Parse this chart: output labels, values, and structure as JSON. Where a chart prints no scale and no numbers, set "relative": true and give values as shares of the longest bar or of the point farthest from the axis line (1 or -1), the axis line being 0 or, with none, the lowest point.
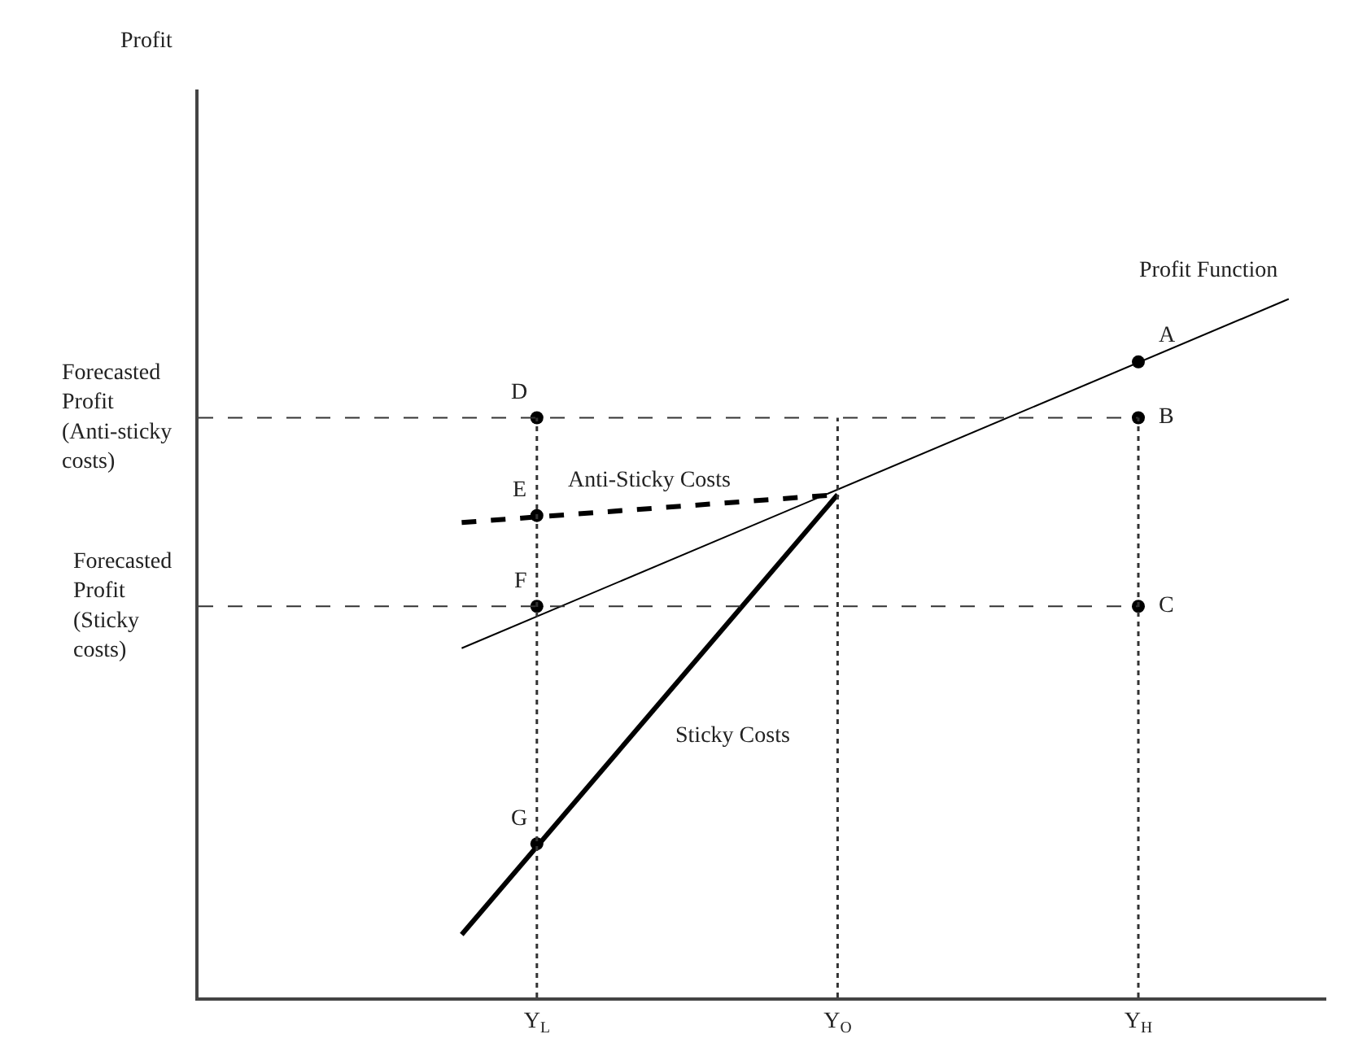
{
  "chart_data": {
    "type": "line",
    "relative": true,
    "categories": [
      null,
      null,
      null,
      null,
      "Y$_{L}$",
      null,
      null,
      null,
      "Y$_{O}$",
      null,
      null,
      null,
      "Y$_{H}$",
      null,
      null
    ],
    "series": [
      {
        "name": "Profit Function",
        "color": "#000000",
        "line_style": "solid",
        "values": [
          null,
          null,
          null,
          0.5,
          null,
          null,
          null,
          null,
          null,
          null,
          null,
          null,
          null,
          null,
          1.0
        ]
      },
      {
        "name": "Anti-Sticky Costs",
        "color": "#000000",
        "line_style": "dashed",
        "values": [
          null,
          null,
          null,
          0.68,
          null,
          null,
          null,
          null,
          0.72,
          null,
          null,
          null,
          null,
          null,
          null
        ]
      },
      {
        "name": "Sticky Costs",
        "color": "#000000",
        "line_style": "solid",
        "values": [
          null,
          null,
          null,
          0.09,
          null,
          null,
          null,
          null,
          0.72,
          null,
          null,
          null,
          null,
          null,
          null
        ]
      },
      {
        "type": "scatter",
        "marker": "circle",
        "color": "#000000",
        "values": [
          null,
          null,
          null,
          null,
          null,
          null,
          null,
          null,
          null,
          null,
          null,
          null,
          0.91,
          null,
          null
        ]
      },
      {
        "type": "scatter",
        "marker": "circle",
        "color": "#000000",
        "values": [
          null,
          null,
          null,
          null,
          0.83,
          null,
          null,
          null,
          null,
          null,
          null,
          null,
          0.83,
          null,
          null
        ]
      },
      {
        "type": "scatter",
        "marker": "circle",
        "color": "#000000",
        "values": [
          null,
          null,
          null,
          null,
          0.69,
          null,
          null,
          null,
          null,
          null,
          null,
          null,
          null,
          null,
          null
        ]
      },
      {
        "type": "scatter",
        "marker": "circle",
        "color": "#000000",
        "values": [
          null,
          null,
          null,
          null,
          0.56,
          null,
          null,
          null,
          null,
          null,
          null,
          null,
          0.56,
          null,
          null
        ]
      },
      {
        "type": "scatter",
        "marker": "circle",
        "color": "#000000",
        "values": [
          null,
          null,
          null,
          null,
          0.22,
          null,
          null,
          null,
          null,
          null,
          null,
          null,
          null,
          null,
          null
        ]
      }
    ],
    "ref_lines": [
      {
        "axis": "y",
        "value": 0.83,
        "label": "Forecasted Profit (Anti-sticky costs)",
        "line_style": "dashed"
      },
      {
        "axis": "y",
        "value": 0.56,
        "label": "Forecasted Profit (Sticky costs)",
        "line_style": "dashed"
      },
      {
        "axis": "x",
        "value": "Y$_{L}$",
        "line_style": "dotted"
      },
      {
        "axis": "x",
        "value": "Y$_{O}$",
        "line_style": "dotted"
      },
      {
        "axis": "x",
        "value": "Y$_{H}$",
        "line_style": "dotted"
      }
    ],
    "annotations": [
      "Profit",
      {
        "text": "A",
        "x": "Y$_{H}$",
        "y": 0.91
      },
      {
        "text": "B",
        "x": "Y$_{H}$",
        "y": 0.83
      },
      {
        "text": "C",
        "x": "Y$_{H}$",
        "y": 0.56
      },
      {
        "text": "D",
        "x": "Y$_{L}$",
        "y": 0.83
      },
      {
        "text": "E",
        "x": "Y$_{L}$",
        "y": 0.69
      },
      {
        "text": "F",
        "x": "Y$_{L}$",
        "y": 0.56
      },
      {
        "text": "G",
        "x": "Y$_{L}$",
        "y": 0.22
      }
    ],
    "legend": false
  }
}
